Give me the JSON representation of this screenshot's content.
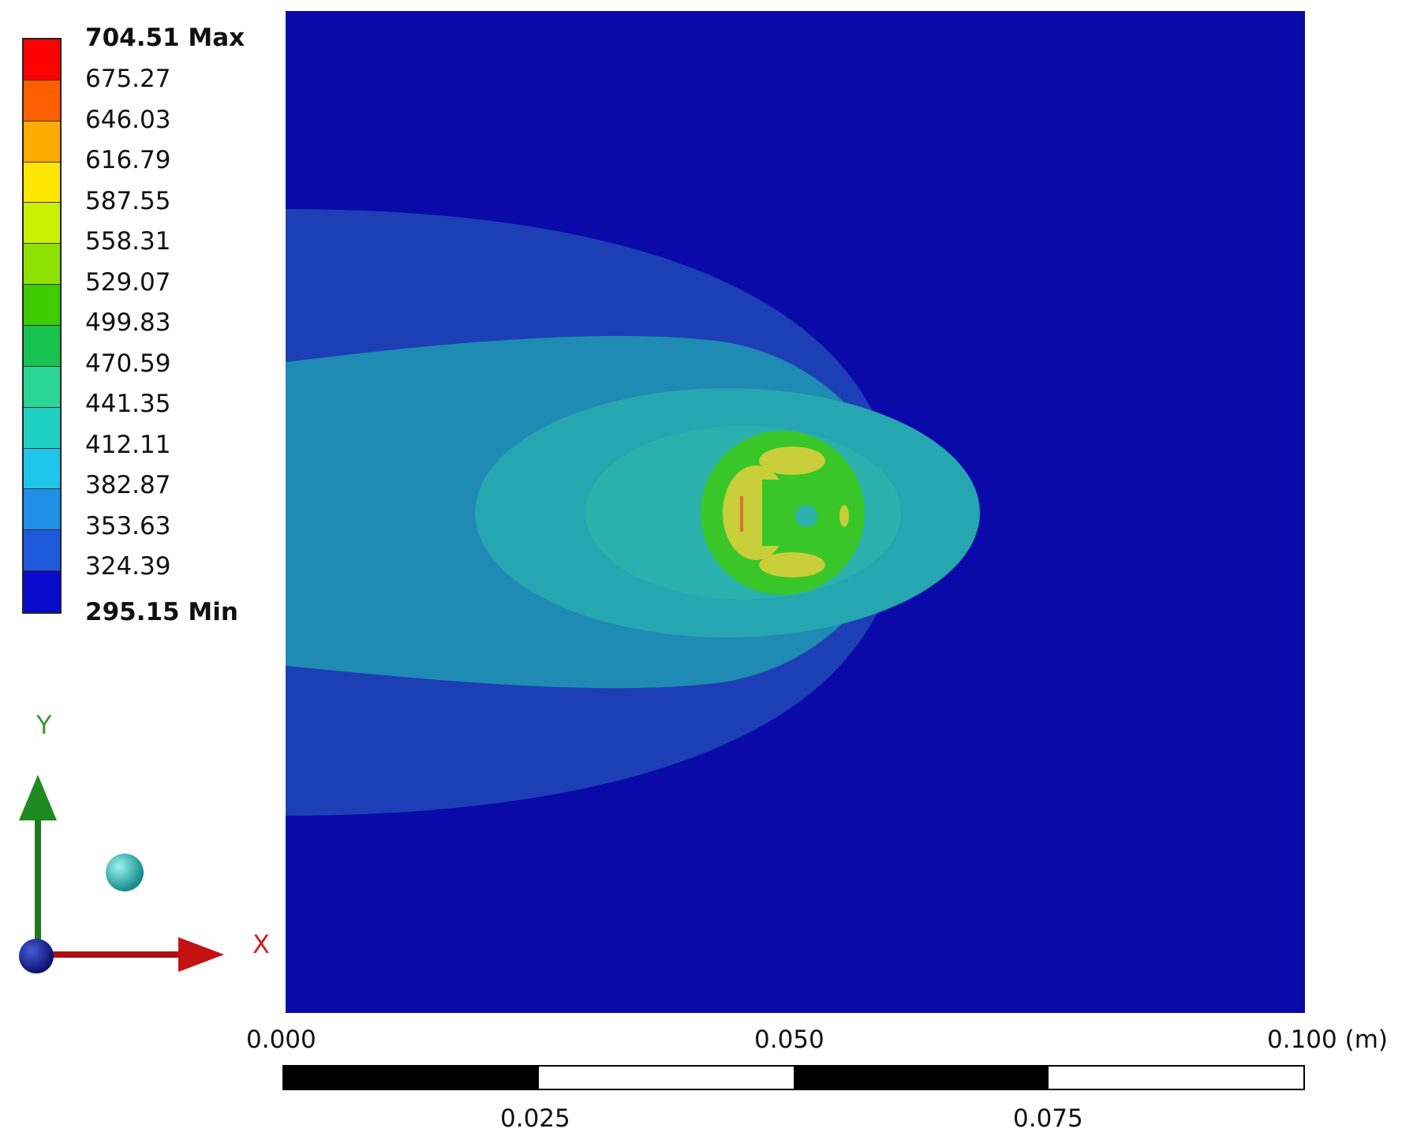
{
  "legend": {
    "max_label": "704.51 Max",
    "min_label": "295.15 Min",
    "levels": [
      "675.27",
      "646.03",
      "616.79",
      "587.55",
      "558.31",
      "529.07",
      "499.83",
      "470.59",
      "441.35",
      "412.11",
      "382.87",
      "353.63",
      "324.39"
    ],
    "band_colors": [
      "#ff0000",
      "#ff5f00",
      "#ffaa00",
      "#ffe600",
      "#c8f000",
      "#8ee000",
      "#3ccc00",
      "#19c34f",
      "#2ad597",
      "#20d0c4",
      "#1ec6ec",
      "#1e90e6",
      "#1f5adc",
      "#0a0acd"
    ]
  },
  "axes": {
    "x_label": "X",
    "y_label": "Y"
  },
  "scale_bar": {
    "top_labels": [
      "0.000",
      "0.050",
      "0.100 (m)"
    ],
    "bottom_labels": [
      "0.025",
      "0.075"
    ]
  },
  "colors": {
    "background_field": "#0a0aa8",
    "outer_plume": "#1c3fb5",
    "middle_plume": "#1f8ab3",
    "inner_plume": "#25a6b0",
    "hot_ring": "#38c628",
    "hot_spot": "#c8cf3a"
  }
}
